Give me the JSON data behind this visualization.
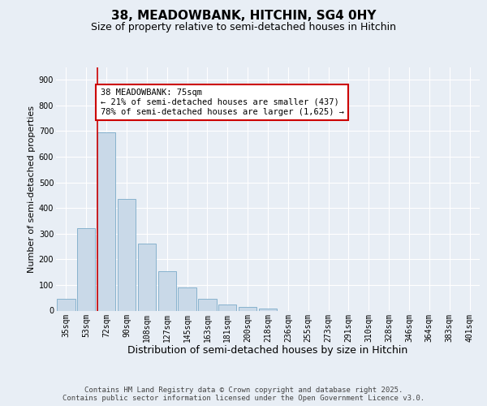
{
  "title": "38, MEADOWBANK, HITCHIN, SG4 0HY",
  "subtitle": "Size of property relative to semi-detached houses in Hitchin",
  "xlabel": "Distribution of semi-detached houses by size in Hitchin",
  "ylabel": "Number of semi-detached properties",
  "categories": [
    "35sqm",
    "53sqm",
    "72sqm",
    "90sqm",
    "108sqm",
    "127sqm",
    "145sqm",
    "163sqm",
    "181sqm",
    "200sqm",
    "218sqm",
    "236sqm",
    "255sqm",
    "273sqm",
    "291sqm",
    "310sqm",
    "328sqm",
    "346sqm",
    "364sqm",
    "383sqm",
    "401sqm"
  ],
  "values": [
    45,
    320,
    695,
    435,
    260,
    155,
    90,
    45,
    25,
    15,
    8,
    0,
    0,
    0,
    0,
    0,
    0,
    0,
    0,
    0,
    0
  ],
  "bar_color": "#c9d9e8",
  "bar_edge_color": "#7aaac8",
  "highlight_index": 2,
  "highlight_line_color": "#cc0000",
  "annotation_text": "38 MEADOWBANK: 75sqm\n← 21% of semi-detached houses are smaller (437)\n78% of semi-detached houses are larger (1,625) →",
  "annotation_box_color": "#ffffff",
  "annotation_box_edge_color": "#cc0000",
  "ylim": [
    0,
    950
  ],
  "yticks": [
    0,
    100,
    200,
    300,
    400,
    500,
    600,
    700,
    800,
    900
  ],
  "background_color": "#e8eef5",
  "footer_text": "Contains HM Land Registry data © Crown copyright and database right 2025.\nContains public sector information licensed under the Open Government Licence v3.0.",
  "title_fontsize": 11,
  "subtitle_fontsize": 9,
  "xlabel_fontsize": 9,
  "ylabel_fontsize": 8,
  "tick_fontsize": 7,
  "annotation_fontsize": 7.5,
  "footer_fontsize": 6.5
}
